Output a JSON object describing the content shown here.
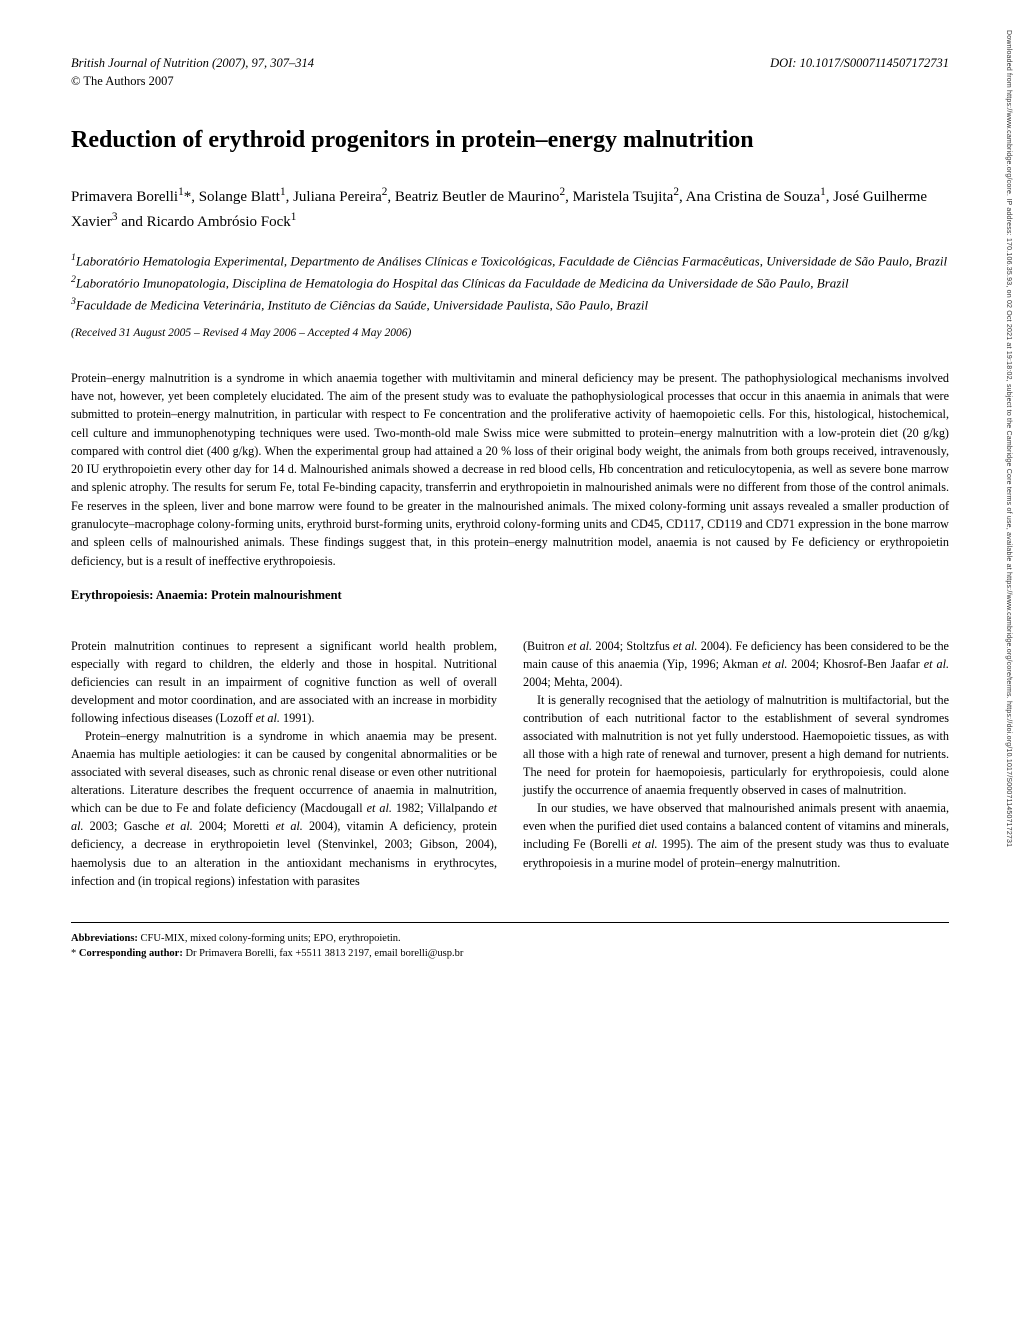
{
  "sidebar": {
    "text": "Downloaded from https://www.cambridge.org/core. IP address: 170.106.35.93, on 02 Oct 2021 at 19:18:02, subject to the Cambridge Core terms of use, available at https://www.cambridge.org/core/terms. https://doi.org/10.1017/S0007114507172731"
  },
  "header": {
    "journal_line": "British Journal of Nutrition (2007), 97, 307–314",
    "doi": "DOI: 10.1017/S0007114507172731",
    "copyright": "© The Authors 2007"
  },
  "title": "Reduction of erythroid progenitors in protein–energy malnutrition",
  "authors_html": "Primavera Borelli<sup>1</sup>*, Solange Blatt<sup>1</sup>, Juliana Pereira<sup>2</sup>, Beatriz Beutler de Maurino<sup>2</sup>, Maristela Tsujita<sup>2</sup>, Ana Cristina de Souza<sup>1</sup>, José Guilherme Xavier<sup>3</sup> and Ricardo Ambrósio Fock<sup>1</sup>",
  "affiliations": [
    "<sup>1</sup>Laboratório Hematologia Experimental, Departmento de Análises Clínicas e Toxicológicas, Faculdade de Ciências Farmacêuticas, Universidade de São Paulo, Brazil",
    "<sup>2</sup>Laboratório Imunopatologia, Disciplina de Hematologia do Hospital das Clínicas da Faculdade de Medicina da Universidade de São Paulo, Brazil",
    "<sup>3</sup>Faculdade de Medicina Veterinária, Instituto de Ciências da Saúde, Universidade Paulista, São Paulo, Brazil"
  ],
  "dates": "(Received 31 August 2005 – Revised 4 May 2006 – Accepted 4 May 2006)",
  "abstract": "Protein–energy malnutrition is a syndrome in which anaemia together with multivitamin and mineral deficiency may be present. The pathophysiological mechanisms involved have not, however, yet been completely elucidated. The aim of the present study was to evaluate the pathophysiological processes that occur in this anaemia in animals that were submitted to protein–energy malnutrition, in particular with respect to Fe concentration and the proliferative activity of haemopoietic cells. For this, histological, histochemical, cell culture and immunophenotyping techniques were used. Two-month-old male Swiss mice were submitted to protein–energy malnutrition with a low-protein diet (20 g/kg) compared with control diet (400 g/kg). When the experimental group had attained a 20 % loss of their original body weight, the animals from both groups received, intravenously, 20 IU erythropoietin every other day for 14 d. Malnourished animals showed a decrease in red blood cells, Hb concentration and reticulocytopenia, as well as severe bone marrow and splenic atrophy. The results for serum Fe, total Fe-binding capacity, transferrin and erythropoietin in malnourished animals were no different from those of the control animals. Fe reserves in the spleen, liver and bone marrow were found to be greater in the malnourished animals. The mixed colony-forming unit assays revealed a smaller production of granulocyte–macrophage colony-forming units, erythroid burst-forming units, erythroid colony-forming units and CD45, CD117, CD119 and CD71 expression in the bone marrow and spleen cells of malnourished animals. These findings suggest that, in this protein–energy malnutrition model, anaemia is not caused by Fe deficiency or erythropoietin deficiency, but is a result of ineffective erythropoiesis.",
  "keywords": "Erythropoiesis: Anaemia: Protein malnourishment",
  "col1": {
    "p1": "Protein malnutrition continues to represent a significant world health problem, especially with regard to children, the elderly and those in hospital. Nutritional deficiencies can result in an impairment of cognitive function as well of overall development and motor coordination, and are associated with an increase in morbidity following infectious diseases (Lozoff <i>et al.</i> 1991).",
    "p2": "Protein–energy malnutrition is a syndrome in which anaemia may be present. Anaemia has multiple aetiologies: it can be caused by congenital abnormalities or be associated with several diseases, such as chronic renal disease or even other nutritional alterations. Literature describes the frequent occurrence of anaemia in malnutrition, which can be due to Fe and folate deficiency (Macdougall <i>et al.</i> 1982; Villalpando <i>et al.</i> 2003; Gasche <i>et al.</i> 2004; Moretti <i>et al.</i> 2004), vitamin A deficiency, protein deficiency, a decrease in erythropoietin level (Stenvinkel, 2003; Gibson, 2004), haemolysis due to an alteration in the antioxidant mechanisms in erythrocytes, infection and (in tropical regions) infestation with parasites"
  },
  "col2": {
    "p1": "(Buitron <i>et al.</i> 2004; Stoltzfus <i>et al.</i> 2004). Fe deficiency has been considered to be the main cause of this anaemia (Yip, 1996; Akman <i>et al.</i> 2004; Khosrof-Ben Jaafar <i>et al.</i> 2004; Mehta, 2004).",
    "p2": "It is generally recognised that the aetiology of malnutrition is multifactorial, but the contribution of each nutritional factor to the establishment of several syndromes associated with malnutrition is not yet fully understood. Haemopoietic tissues, as with all those with a high rate of renewal and turnover, present a high demand for nutrients. The need for protein for haemopoiesis, particularly for erythropoiesis, could alone justify the occurrence of anaemia frequently observed in cases of malnutrition.",
    "p3": "In our studies, we have observed that malnourished animals present with anaemia, even when the purified diet used contains a balanced content of vitamins and minerals, including Fe (Borelli <i>et al.</i> 1995). The aim of the present study was thus to evaluate erythropoiesis in a murine model of protein–energy malnutrition."
  },
  "footer": {
    "abbrev": "<b>Abbreviations:</b> CFU-MIX, mixed colony-forming units; EPO, erythropoietin.",
    "corresponding": "* <b>Corresponding author:</b> Dr Primavera Borelli, fax +5511 3813 2197, email borelli@usp.br"
  },
  "colors": {
    "background": "#ffffff",
    "text": "#000000",
    "divider": "#000000"
  }
}
